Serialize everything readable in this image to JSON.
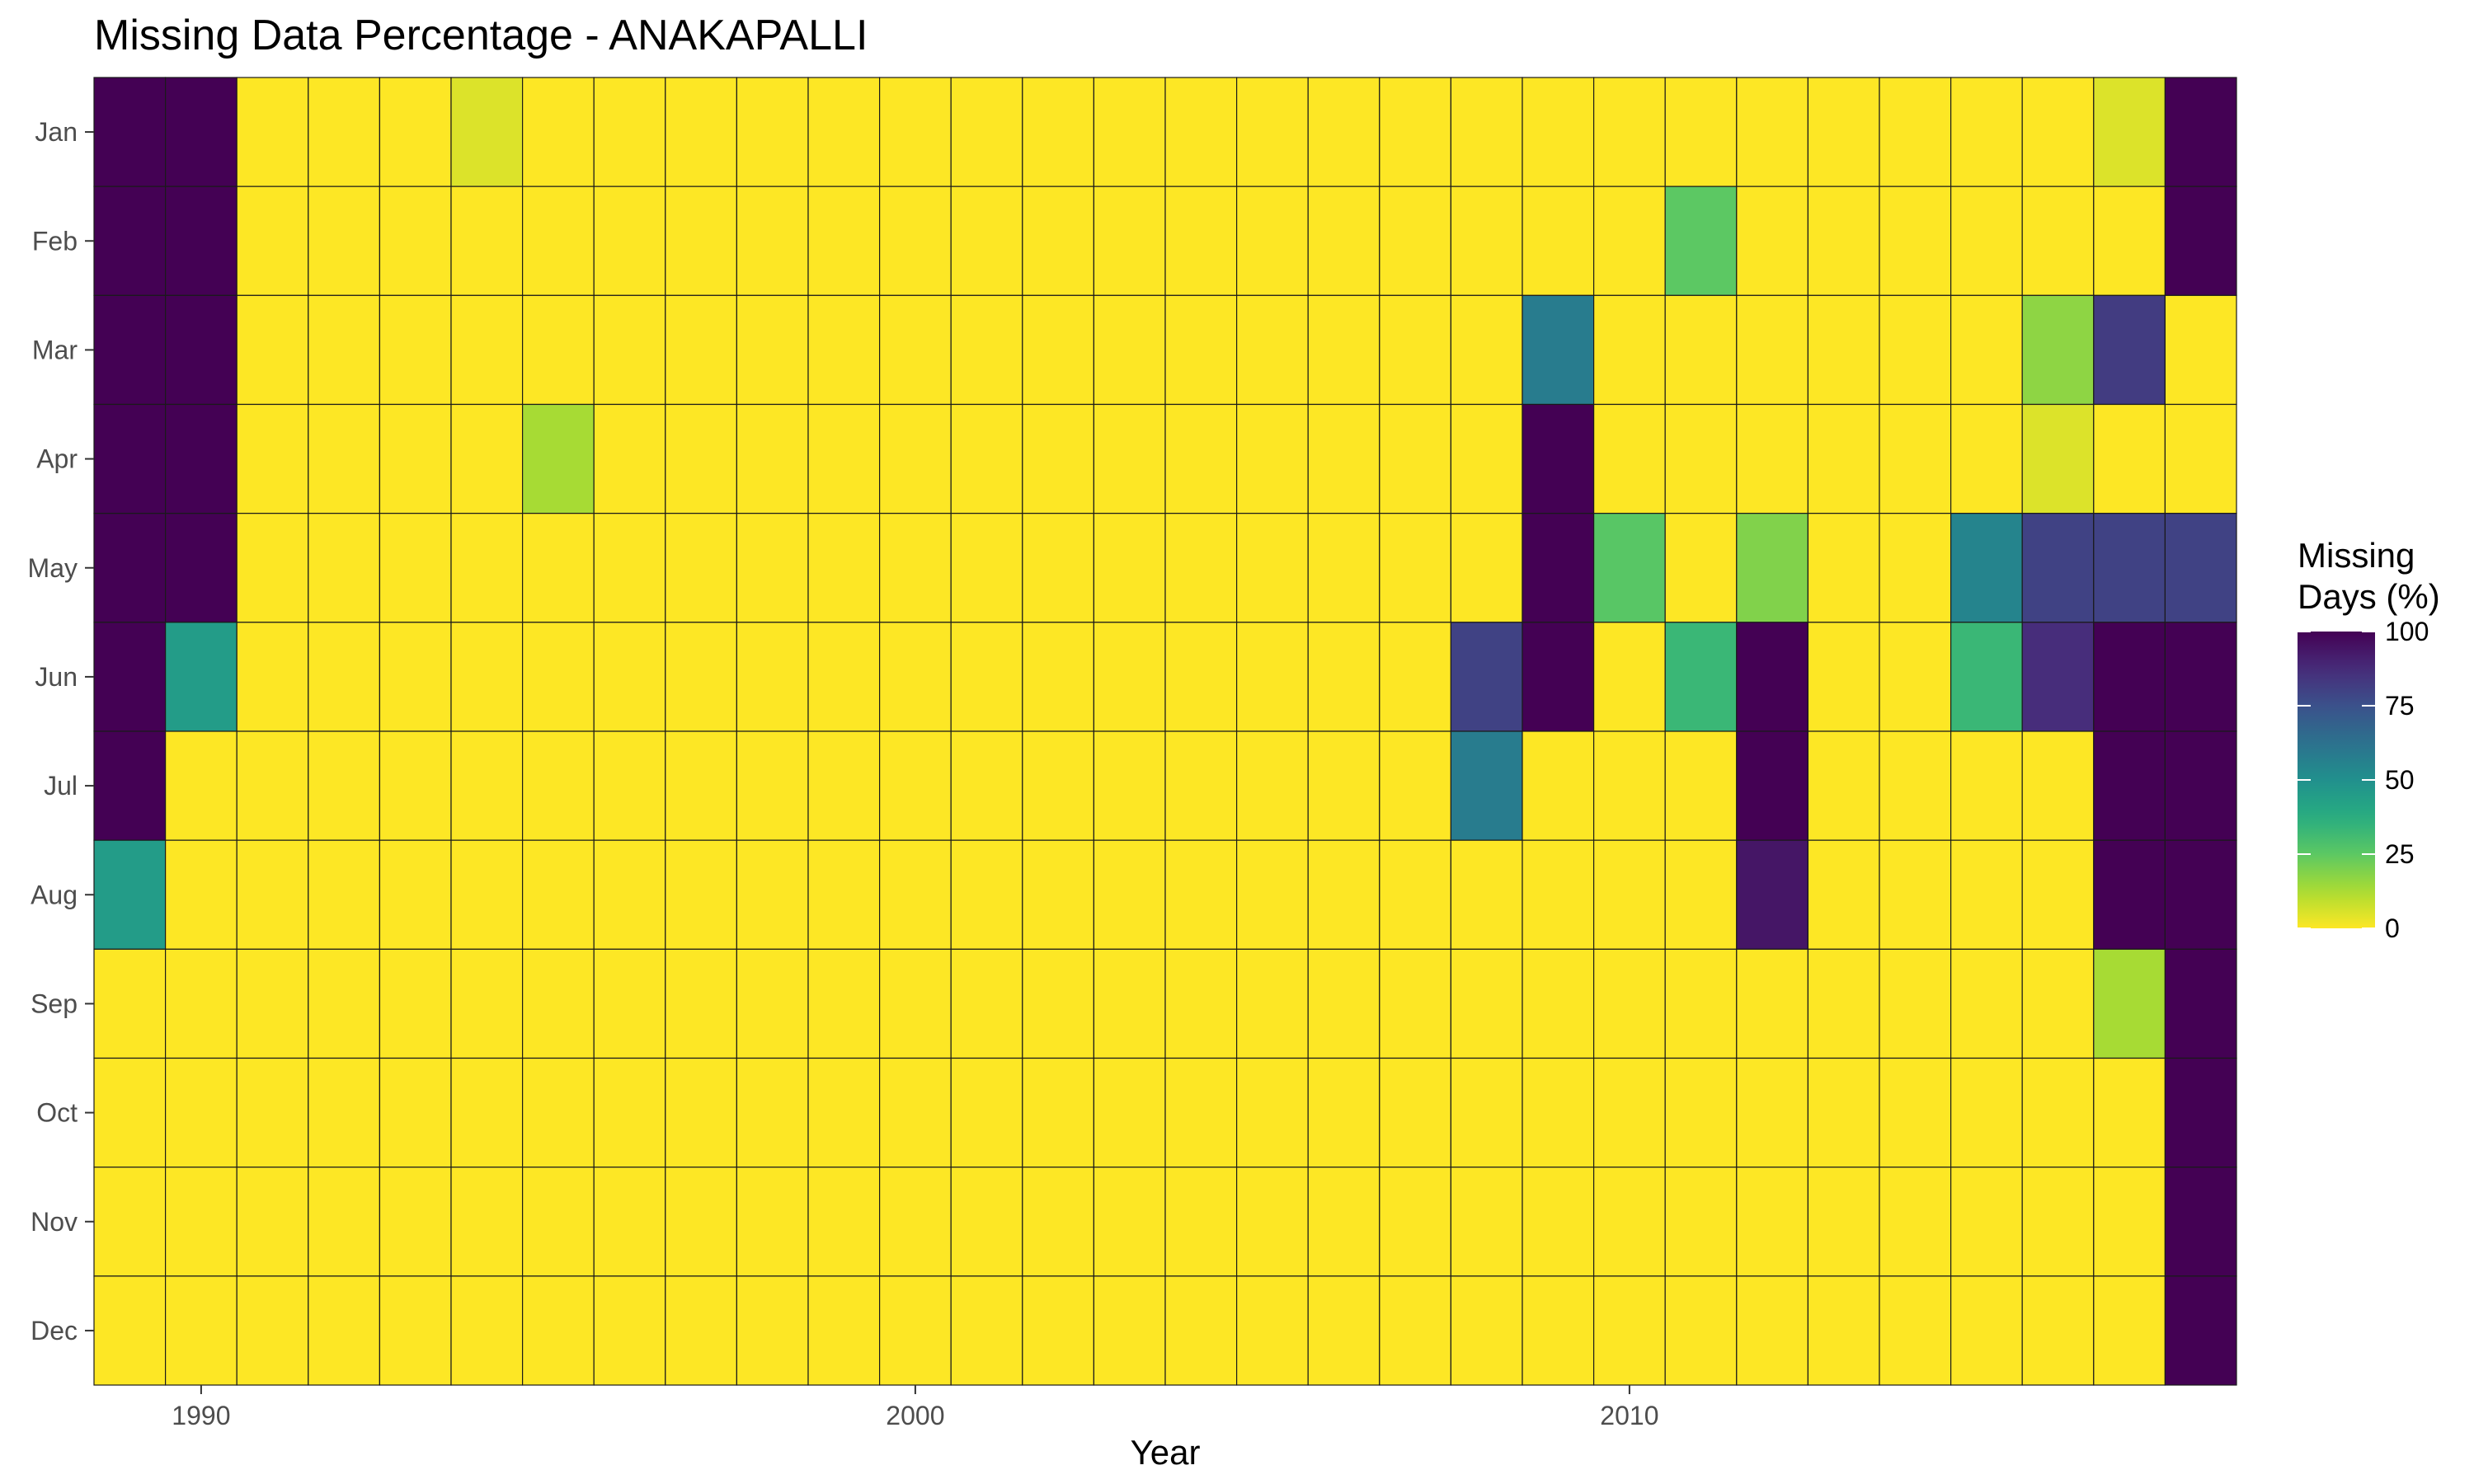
{
  "chart_data": {
    "type": "heatmap",
    "title": "Missing Data Percentage - ANAKAPALLI",
    "xlabel": "Year",
    "ylabel": "",
    "x": [
      1989,
      1990,
      1991,
      1992,
      1993,
      1994,
      1995,
      1996,
      1997,
      1998,
      1999,
      2000,
      2001,
      2002,
      2003,
      2004,
      2005,
      2006,
      2007,
      2008,
      2009,
      2010,
      2011,
      2012,
      2013,
      2014,
      2015,
      2016,
      2017,
      2018
    ],
    "x_ticks": [
      1990,
      2000,
      2010
    ],
    "y": [
      "Jan",
      "Feb",
      "Mar",
      "Apr",
      "May",
      "Jun",
      "Jul",
      "Aug",
      "Sep",
      "Oct",
      "Nov",
      "Dec"
    ],
    "values": [
      [
        100,
        100,
        0,
        0,
        0,
        5,
        0,
        0,
        0,
        0,
        0,
        0,
        0,
        0,
        0,
        0,
        0,
        0,
        0,
        0,
        0,
        0,
        0,
        0,
        0,
        0,
        0,
        0,
        5,
        100
      ],
      [
        100,
        100,
        0,
        0,
        0,
        0,
        0,
        0,
        0,
        0,
        0,
        0,
        0,
        0,
        0,
        0,
        0,
        0,
        0,
        0,
        0,
        0,
        25,
        0,
        0,
        0,
        0,
        0,
        0,
        100
      ],
      [
        100,
        100,
        0,
        0,
        0,
        0,
        0,
        0,
        0,
        0,
        0,
        0,
        0,
        0,
        0,
        0,
        0,
        0,
        0,
        0,
        58,
        0,
        0,
        0,
        0,
        0,
        0,
        17,
        82,
        0
      ],
      [
        100,
        100,
        0,
        0,
        0,
        0,
        13,
        0,
        0,
        0,
        0,
        0,
        0,
        0,
        0,
        0,
        0,
        0,
        0,
        0,
        100,
        0,
        0,
        0,
        0,
        0,
        0,
        5,
        0,
        0
      ],
      [
        100,
        100,
        0,
        0,
        0,
        0,
        0,
        0,
        0,
        0,
        0,
        0,
        0,
        0,
        0,
        0,
        0,
        0,
        0,
        0,
        100,
        26,
        0,
        19,
        0,
        0,
        55,
        80,
        80,
        80
      ],
      [
        100,
        45,
        0,
        0,
        0,
        0,
        0,
        0,
        0,
        0,
        0,
        0,
        0,
        0,
        0,
        0,
        0,
        0,
        0,
        80,
        100,
        0,
        33,
        100,
        0,
        0,
        33,
        87,
        100,
        100
      ],
      [
        100,
        0,
        0,
        0,
        0,
        0,
        0,
        0,
        0,
        0,
        0,
        0,
        0,
        0,
        0,
        0,
        0,
        0,
        0,
        58,
        0,
        0,
        0,
        100,
        0,
        0,
        0,
        0,
        100,
        100
      ],
      [
        45,
        0,
        0,
        0,
        0,
        0,
        0,
        0,
        0,
        0,
        0,
        0,
        0,
        0,
        0,
        0,
        0,
        0,
        0,
        0,
        0,
        0,
        0,
        94,
        0,
        0,
        0,
        0,
        100,
        100
      ],
      [
        0,
        0,
        0,
        0,
        0,
        0,
        0,
        0,
        0,
        0,
        0,
        0,
        0,
        0,
        0,
        0,
        0,
        0,
        0,
        0,
        0,
        0,
        0,
        0,
        0,
        0,
        0,
        0,
        13,
        100
      ],
      [
        0,
        0,
        0,
        0,
        0,
        0,
        0,
        0,
        0,
        0,
        0,
        0,
        0,
        0,
        0,
        0,
        0,
        0,
        0,
        0,
        0,
        0,
        0,
        0,
        0,
        0,
        0,
        0,
        0,
        100
      ],
      [
        0,
        0,
        0,
        0,
        0,
        0,
        0,
        0,
        0,
        0,
        0,
        0,
        0,
        0,
        0,
        0,
        0,
        0,
        0,
        0,
        0,
        0,
        0,
        0,
        0,
        0,
        0,
        0,
        0,
        100
      ],
      [
        0,
        0,
        0,
        0,
        0,
        0,
        0,
        0,
        0,
        0,
        0,
        0,
        0,
        0,
        0,
        0,
        0,
        0,
        0,
        0,
        0,
        0,
        0,
        0,
        0,
        0,
        0,
        0,
        0,
        100
      ]
    ],
    "color_scale": "viridis",
    "color_reversed": true,
    "color_range": [
      0,
      100
    ],
    "legend": {
      "title_line1": "Missing",
      "title_line2": "Days (%)",
      "ticks": [
        0,
        25,
        50,
        75,
        100
      ],
      "placement": "right"
    },
    "grid": false
  }
}
